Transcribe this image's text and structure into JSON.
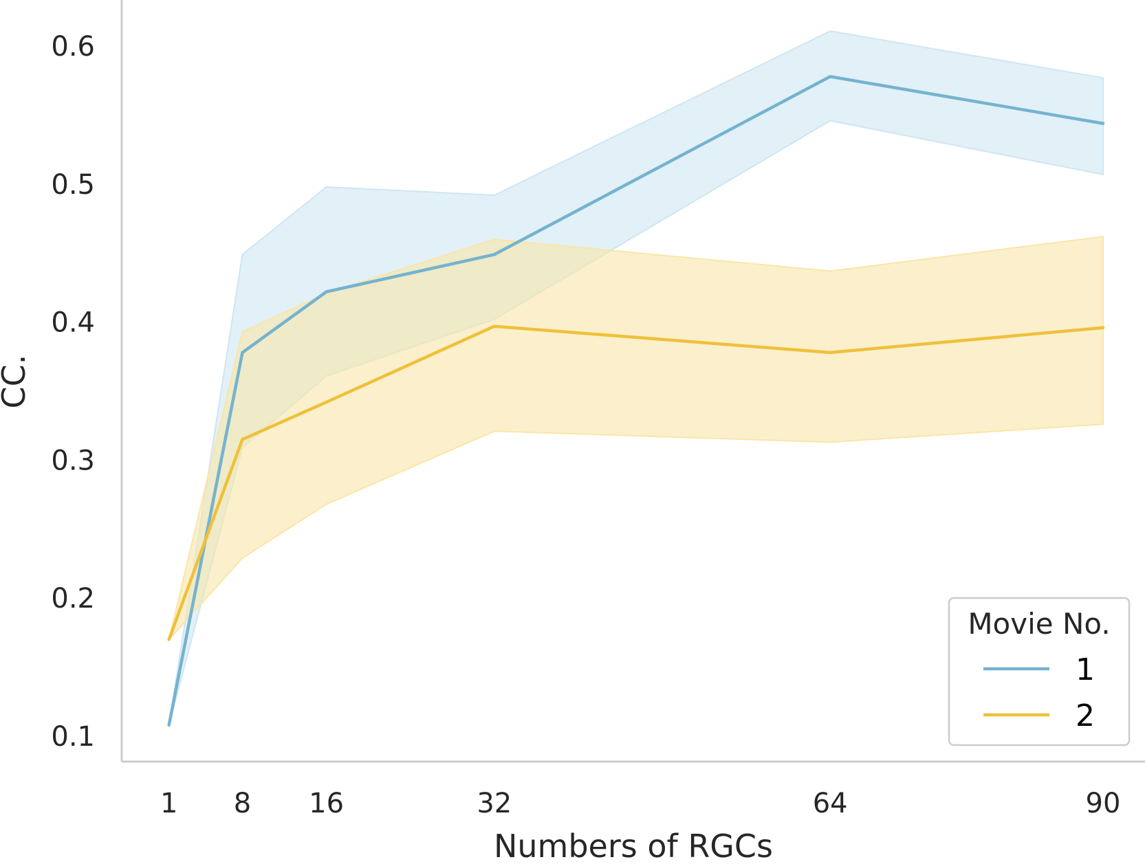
{
  "chart_data": {
    "type": "line",
    "xlabel": "Numbers of RGCs",
    "ylabel": "CC.",
    "x": [
      1,
      8,
      16,
      32,
      64,
      90
    ],
    "x_ticks": [
      1,
      8,
      16,
      32,
      64,
      90
    ],
    "y_ticks": [
      0.1,
      0.2,
      0.3,
      0.4,
      0.5,
      0.6
    ],
    "xlim": [
      -3.5,
      94
    ],
    "ylim": [
      0.0815,
      0.6335
    ],
    "grid": false,
    "legend": {
      "title": "Movie No.",
      "placement": "bottom-right"
    },
    "series": [
      {
        "name": "1",
        "color": "#74b3cf",
        "band_color": "#cfe6f2",
        "values": [
          0.108,
          0.378,
          0.422,
          0.449,
          0.578,
          0.544
        ],
        "ci_lower": [
          0.108,
          0.309,
          0.361,
          0.402,
          0.546,
          0.507
        ],
        "ci_upper": [
          0.108,
          0.449,
          0.498,
          0.492,
          0.611,
          0.577
        ]
      },
      {
        "name": "2",
        "color": "#efc03a",
        "band_color": "#f9e6a8",
        "values": [
          0.17,
          0.315,
          0.342,
          0.397,
          0.378,
          0.396
        ],
        "ci_lower": [
          0.17,
          0.229,
          0.268,
          0.321,
          0.313,
          0.326
        ],
        "ci_upper": [
          0.17,
          0.393,
          0.421,
          0.46,
          0.437,
          0.462
        ]
      }
    ]
  }
}
